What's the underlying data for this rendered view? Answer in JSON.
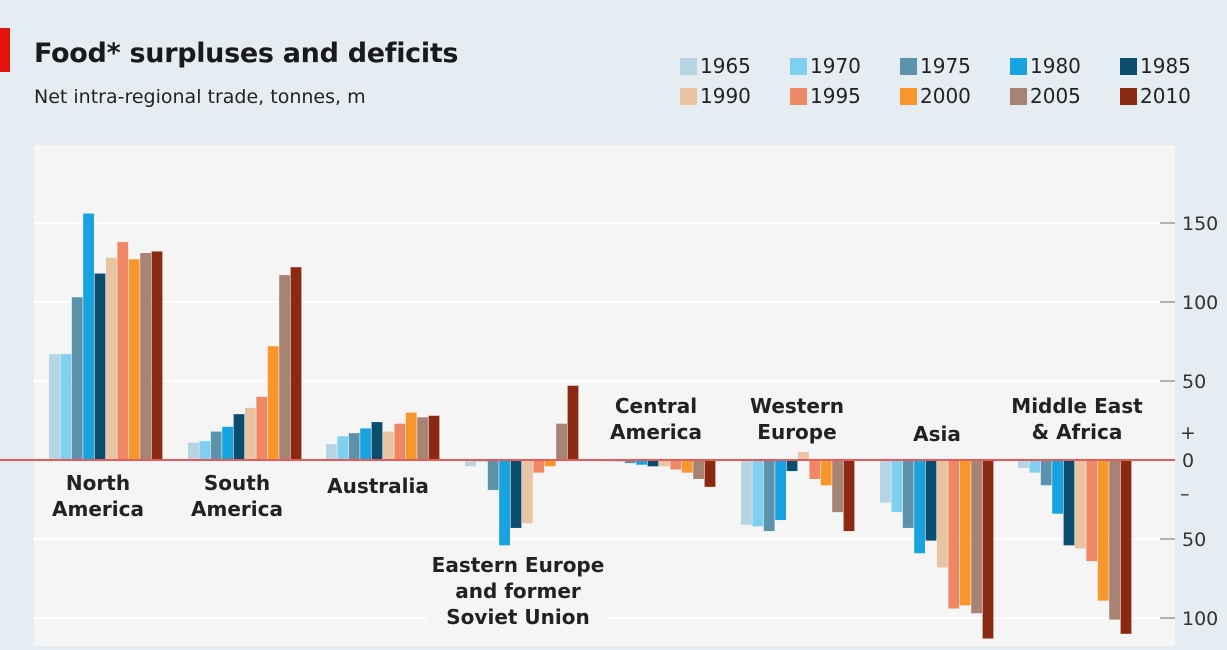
{
  "header": {
    "title": "Food* surpluses and deficits",
    "subtitle": "Net intra-regional trade, tonnes, m"
  },
  "colors": {
    "1965": "#b6d4e3",
    "1970": "#7fd0f0",
    "1975": "#5c92ac",
    "1980": "#17a3df",
    "1985": "#0b4d6f",
    "1990": "#e8c4a2",
    "1995": "#ef8764",
    "2000": "#f8962c",
    "2005": "#a88272",
    "2010": "#8a2a12",
    "zero_line": "#e35b5b",
    "grid": "#ffffff",
    "brand_red": "#e3120b"
  },
  "chart_data": {
    "type": "bar",
    "title": "Food* surpluses and deficits",
    "subtitle": "Net intra-regional trade, tonnes, m",
    "ylim": [
      -110,
      185
    ],
    "y_ticks": [
      {
        "value": 150,
        "label": "150"
      },
      {
        "value": 100,
        "label": "100"
      },
      {
        "value": 50,
        "label": "50"
      },
      {
        "value": 0,
        "label": "0"
      },
      {
        "value": -50,
        "label": "50"
      },
      {
        "value": -100,
        "label": "100"
      }
    ],
    "sign_labels": {
      "plus": "+",
      "minus": "–"
    },
    "grid": true,
    "legend_position": "top-right",
    "series_names": [
      "1965",
      "1970",
      "1975",
      "1980",
      "1985",
      "1990",
      "1995",
      "2000",
      "2005",
      "2010"
    ],
    "categories": [
      {
        "name": "North America",
        "label_lines": [
          "North",
          "America"
        ],
        "values": [
          67,
          67,
          103,
          156,
          118,
          128,
          138,
          127,
          131,
          132
        ]
      },
      {
        "name": "South America",
        "label_lines": [
          "South",
          "America"
        ],
        "values": [
          11,
          12,
          18,
          21,
          29,
          33,
          40,
          72,
          117,
          122
        ]
      },
      {
        "name": "Australia",
        "label_lines": [
          "Australia"
        ],
        "values": [
          10,
          15,
          17,
          20,
          24,
          18,
          23,
          30,
          27,
          28
        ]
      },
      {
        "name": "Eastern Europe and former Soviet Union",
        "label_lines": [
          "Eastern Europe",
          "and former",
          "Soviet Union"
        ],
        "values": [
          -4,
          -1,
          -19,
          -54,
          -43,
          -40,
          -8,
          -4,
          23,
          47
        ]
      },
      {
        "name": "Central America",
        "label_lines": [
          "Central",
          "America"
        ],
        "values": [
          -1,
          -1,
          -2,
          -3,
          -4,
          -4,
          -6,
          -8,
          -12,
          -17
        ]
      },
      {
        "name": "Western Europe",
        "label_lines": [
          "Western",
          "Europe"
        ],
        "values": [
          -41,
          -42,
          -45,
          -38,
          -7,
          5,
          -12,
          -16,
          -33,
          -45
        ]
      },
      {
        "name": "Asia",
        "label_lines": [
          "Asia"
        ],
        "values": [
          -27,
          -33,
          -43,
          -59,
          -51,
          -68,
          -94,
          -92,
          -97,
          -113
        ]
      },
      {
        "name": "Middle East & Africa",
        "label_lines": [
          "Middle East",
          "& Africa"
        ],
        "values": [
          -5,
          -8,
          -16,
          -34,
          -54,
          -56,
          -64,
          -89,
          -101,
          -110
        ]
      }
    ]
  }
}
